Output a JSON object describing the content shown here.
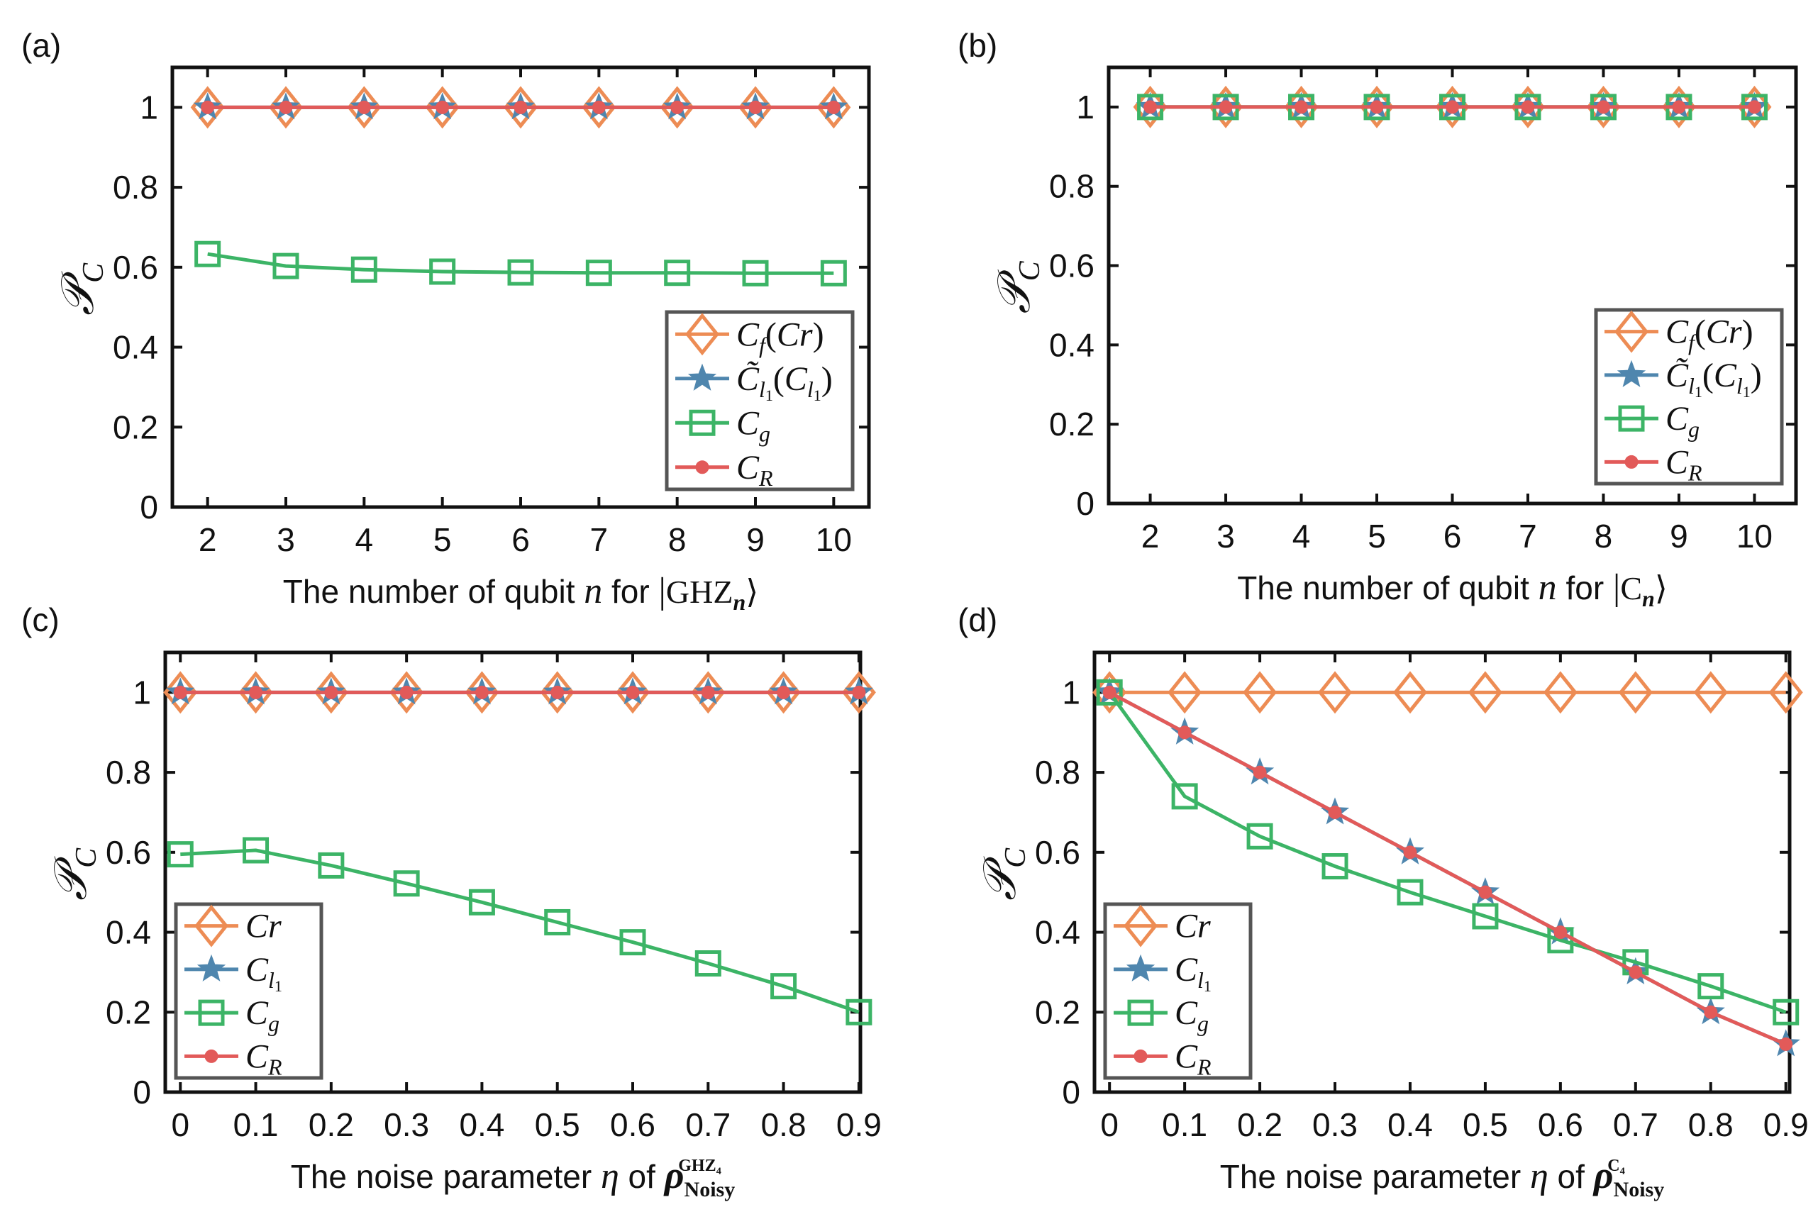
{
  "colors": {
    "Cr": "#ED8C54",
    "Cl1": "#4F86AE",
    "Cg": "#3CB466",
    "CR": "#E25A59",
    "axis": "#111111",
    "legend_border": "#555555"
  },
  "chart_data": [
    {
      "panel_label": "(a)",
      "type": "line",
      "x": [
        2,
        3,
        4,
        5,
        6,
        7,
        8,
        9,
        10
      ],
      "xlim": [
        1.55,
        10.45
      ],
      "ylim": [
        0,
        1.1
      ],
      "xticks": [
        "2",
        "3",
        "4",
        "5",
        "6",
        "7",
        "8",
        "9",
        "10"
      ],
      "yticks": [
        "0",
        "0.2",
        "0.4",
        "0.6",
        "0.8",
        "1"
      ],
      "xlabel_text": "The number of qubit",
      "xlabel_var": "n",
      "xlabel_for": "for",
      "xlabel_state": "GHZ",
      "xlabel_sub": "n",
      "ylabel": "𝒫",
      "ylabel_sub": "C",
      "legend": {
        "position": "lower-right",
        "entries": [
          "C_f(Cr)",
          "C̃_l1(C_l1)",
          "C_g",
          "C_R"
        ]
      },
      "series": [
        {
          "name": "C_f(Cr)",
          "key": "Cr",
          "marker": "diamond",
          "values": [
            1,
            1,
            1,
            1,
            1,
            1,
            1,
            1,
            1
          ]
        },
        {
          "name": "C̃_l1(C_l1)",
          "key": "Cl1",
          "marker": "star",
          "values": [
            1,
            1,
            1,
            1,
            1,
            1,
            1,
            1,
            1
          ]
        },
        {
          "name": "C_g",
          "key": "Cg",
          "marker": "square",
          "values": [
            0.633,
            0.603,
            0.594,
            0.589,
            0.587,
            0.586,
            0.586,
            0.585,
            0.585
          ]
        },
        {
          "name": "C_R",
          "key": "CR",
          "marker": "dot",
          "values": [
            1,
            1,
            1,
            1,
            1,
            1,
            1,
            1,
            1
          ]
        }
      ]
    },
    {
      "panel_label": "(b)",
      "type": "line",
      "x": [
        2,
        3,
        4,
        5,
        6,
        7,
        8,
        9,
        10
      ],
      "xlim": [
        1.45,
        10.55
      ],
      "ylim": [
        0,
        1.1
      ],
      "xticks": [
        "2",
        "3",
        "4",
        "5",
        "6",
        "7",
        "8",
        "9",
        "10"
      ],
      "yticks": [
        "0",
        "0.2",
        "0.4",
        "0.6",
        "0.8",
        "1"
      ],
      "xlabel_text": "The number of qubit",
      "xlabel_var": "n",
      "xlabel_for": "for",
      "xlabel_state": "C",
      "xlabel_sub": "n",
      "ylabel": "𝒫",
      "ylabel_sub": "C",
      "legend": {
        "position": "lower-right",
        "entries": [
          "C_f(Cr)",
          "C̃_l1(C_l1)",
          "C_g",
          "C_R"
        ]
      },
      "series": [
        {
          "name": "C_f(Cr)",
          "key": "Cr",
          "marker": "diamond",
          "values": [
            1,
            1,
            1,
            1,
            1,
            1,
            1,
            1,
            1
          ]
        },
        {
          "name": "C̃_l1(C_l1)",
          "key": "Cl1",
          "marker": "star",
          "values": [
            1,
            1,
            1,
            1,
            1,
            1,
            1,
            1,
            1
          ]
        },
        {
          "name": "C_g",
          "key": "Cg",
          "marker": "square",
          "values": [
            1,
            1,
            1,
            1,
            1,
            1,
            1,
            1,
            1
          ]
        },
        {
          "name": "C_R",
          "key": "CR",
          "marker": "dot",
          "values": [
            1,
            1,
            1,
            1,
            1,
            1,
            1,
            1,
            1
          ]
        }
      ]
    },
    {
      "panel_label": "(c)",
      "type": "line",
      "x": [
        0,
        0.1,
        0.2,
        0.3,
        0.4,
        0.5,
        0.6,
        0.7,
        0.8,
        0.9
      ],
      "xlim": [
        -0.02,
        0.902
      ],
      "ylim": [
        0,
        1.1
      ],
      "xticks": [
        "0",
        "0.1",
        "0.2",
        "0.3",
        "0.4",
        "0.5",
        "0.6",
        "0.7",
        "0.8",
        "0.9"
      ],
      "yticks": [
        "0",
        "0.2",
        "0.4",
        "0.6",
        "0.8",
        "1"
      ],
      "xlabel_text": "The noise parameter",
      "xlabel_var": "η",
      "xlabel_for": "of",
      "xlabel_state": "ρ",
      "xlabel_sub": "Noisy",
      "xlabel_sup": "GHZ₄",
      "ylabel": "𝒫",
      "ylabel_sub": "C",
      "legend": {
        "position": "lower-left",
        "entries": [
          "Cr",
          "C_l1",
          "C_g",
          "C_R"
        ]
      },
      "series": [
        {
          "name": "Cr",
          "key": "Cr",
          "marker": "diamond",
          "values": [
            1,
            1,
            1,
            1,
            1,
            1,
            1,
            1,
            1,
            1
          ]
        },
        {
          "name": "C_l1",
          "key": "Cl1",
          "marker": "star",
          "values": [
            1,
            1,
            1,
            1,
            1,
            1,
            1,
            1,
            1,
            1
          ]
        },
        {
          "name": "C_g",
          "key": "Cg",
          "marker": "square",
          "values": [
            0.595,
            0.605,
            0.567,
            0.522,
            0.475,
            0.425,
            0.375,
            0.322,
            0.265,
            0.2
          ]
        },
        {
          "name": "C_R",
          "key": "CR",
          "marker": "dot",
          "values": [
            1,
            1,
            1,
            1,
            1,
            1,
            1,
            1,
            1,
            1
          ]
        }
      ]
    },
    {
      "panel_label": "(d)",
      "type": "line",
      "x": [
        0,
        0.1,
        0.2,
        0.3,
        0.4,
        0.5,
        0.6,
        0.7,
        0.8,
        0.9
      ],
      "xlim": [
        -0.02,
        0.905
      ],
      "ylim": [
        0,
        1.1
      ],
      "xticks": [
        "0",
        "0.1",
        "0.2",
        "0.3",
        "0.4",
        "0.5",
        "0.6",
        "0.7",
        "0.8",
        "0.9"
      ],
      "yticks": [
        "0",
        "0.2",
        "0.4",
        "0.6",
        "0.8",
        "1"
      ],
      "xlabel_text": "The noise parameter",
      "xlabel_var": "η",
      "xlabel_for": "of",
      "xlabel_state": "ρ",
      "xlabel_sub": "Noisy",
      "xlabel_sup": "C₄",
      "ylabel": "𝒫",
      "ylabel_sub": "C",
      "legend": {
        "position": "lower-left",
        "entries": [
          "Cr",
          "C_l1",
          "C_g",
          "C_R"
        ]
      },
      "series": [
        {
          "name": "Cr",
          "key": "Cr",
          "marker": "diamond",
          "values": [
            1,
            1,
            1,
            1,
            1,
            1,
            1,
            1,
            1,
            1
          ]
        },
        {
          "name": "C_l1",
          "key": "Cl1",
          "marker": "star",
          "values": [
            1,
            0.9,
            0.8,
            0.7,
            0.6,
            0.5,
            0.4,
            0.3,
            0.2,
            0.12
          ]
        },
        {
          "name": "C_g",
          "key": "Cg",
          "marker": "square",
          "values": [
            1,
            0.74,
            0.64,
            0.565,
            0.5,
            0.44,
            0.38,
            0.325,
            0.265,
            0.2
          ]
        },
        {
          "name": "C_R",
          "key": "CR",
          "marker": "dot",
          "values": [
            1,
            0.9,
            0.8,
            0.7,
            0.6,
            0.5,
            0.4,
            0.3,
            0.2,
            0.12
          ]
        }
      ]
    }
  ]
}
